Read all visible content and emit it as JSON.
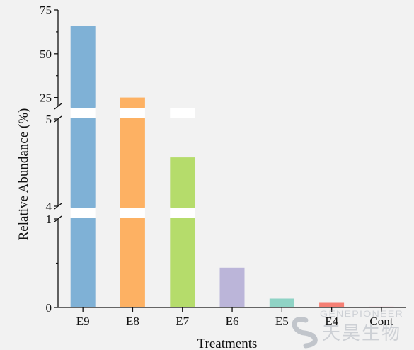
{
  "chart_data": {
    "type": "bar",
    "title": "",
    "xlabel": "Treatments",
    "ylabel": "Relative Abundance (%)",
    "categories": [
      "E9",
      "E8",
      "E7",
      "E6",
      "E5",
      "E4",
      "Cont"
    ],
    "values": [
      66,
      25,
      4.56,
      0.45,
      0.1,
      0.06,
      0.01
    ],
    "colors": [
      "#7fb1d6",
      "#fdb163",
      "#b5dc6b",
      "#bbb5d9",
      "#8fd3c5",
      "#f57f74",
      "#f7bcc9"
    ],
    "y_axis_breaks": [
      {
        "range": [
          0,
          1
        ],
        "ticks": [
          0,
          1
        ],
        "minor_ticks": [
          0.5
        ]
      },
      {
        "range": [
          4,
          5
        ],
        "ticks": [
          4,
          5
        ]
      },
      {
        "range": [
          20,
          75
        ],
        "ticks": [
          25,
          50,
          75
        ]
      }
    ],
    "ylim": [
      0,
      75
    ],
    "grid": false,
    "legend": "none"
  },
  "watermark": {
    "brand_latin": "GENEPIONEER",
    "brand_chinese": "天昊生物"
  }
}
